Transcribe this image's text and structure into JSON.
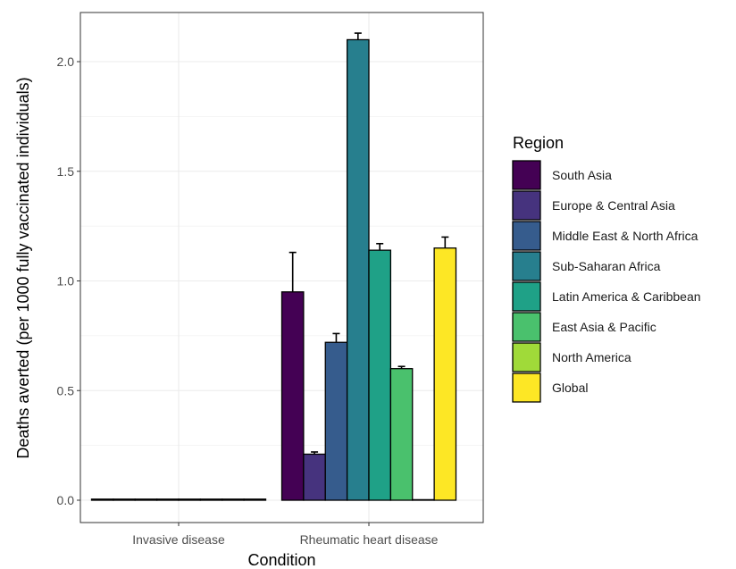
{
  "chart_data": {
    "type": "bar",
    "xlabel": "Condition",
    "ylabel": "Deaths averted (per 1000 fully vaccinated individuals)",
    "categories": [
      "Invasive disease",
      "Rheumatic heart disease"
    ],
    "ylim": [
      0,
      2.2
    ],
    "yticks": [
      0.0,
      0.5,
      1.0,
      1.5,
      2.0
    ],
    "ytick_labels": [
      "0.0",
      "0.5",
      "1.0",
      "1.5",
      "2.0"
    ],
    "grid": true,
    "legend": {
      "title": "Region",
      "position": "right"
    },
    "series": [
      {
        "name": "South Asia",
        "color": "#440154",
        "values": [
          0.005,
          0.95
        ],
        "err_upper": [
          0.005,
          1.13
        ]
      },
      {
        "name": "Europe & Central Asia",
        "color": "#46337e",
        "values": [
          0.005,
          0.21
        ],
        "err_upper": [
          0.005,
          0.22
        ]
      },
      {
        "name": "Middle East & North Africa",
        "color": "#365c8d",
        "values": [
          0.005,
          0.72
        ],
        "err_upper": [
          0.005,
          0.76
        ]
      },
      {
        "name": "Sub-Saharan Africa",
        "color": "#277f8e",
        "values": [
          0.005,
          2.1
        ],
        "err_upper": [
          0.005,
          2.13
        ]
      },
      {
        "name": "Latin America & Caribbean",
        "color": "#1fa187",
        "values": [
          0.005,
          1.14
        ],
        "err_upper": [
          0.005,
          1.17
        ]
      },
      {
        "name": "East Asia & Pacific",
        "color": "#4ac16d",
        "values": [
          0.005,
          0.6
        ],
        "err_upper": [
          0.005,
          0.61
        ]
      },
      {
        "name": "North America",
        "color": "#a0da39",
        "values": [
          0.005,
          0.002
        ],
        "err_upper": [
          0.005,
          0.002
        ]
      },
      {
        "name": "Global",
        "color": "#fde725",
        "values": [
          0.005,
          1.15
        ],
        "err_upper": [
          0.005,
          1.2
        ]
      }
    ]
  }
}
